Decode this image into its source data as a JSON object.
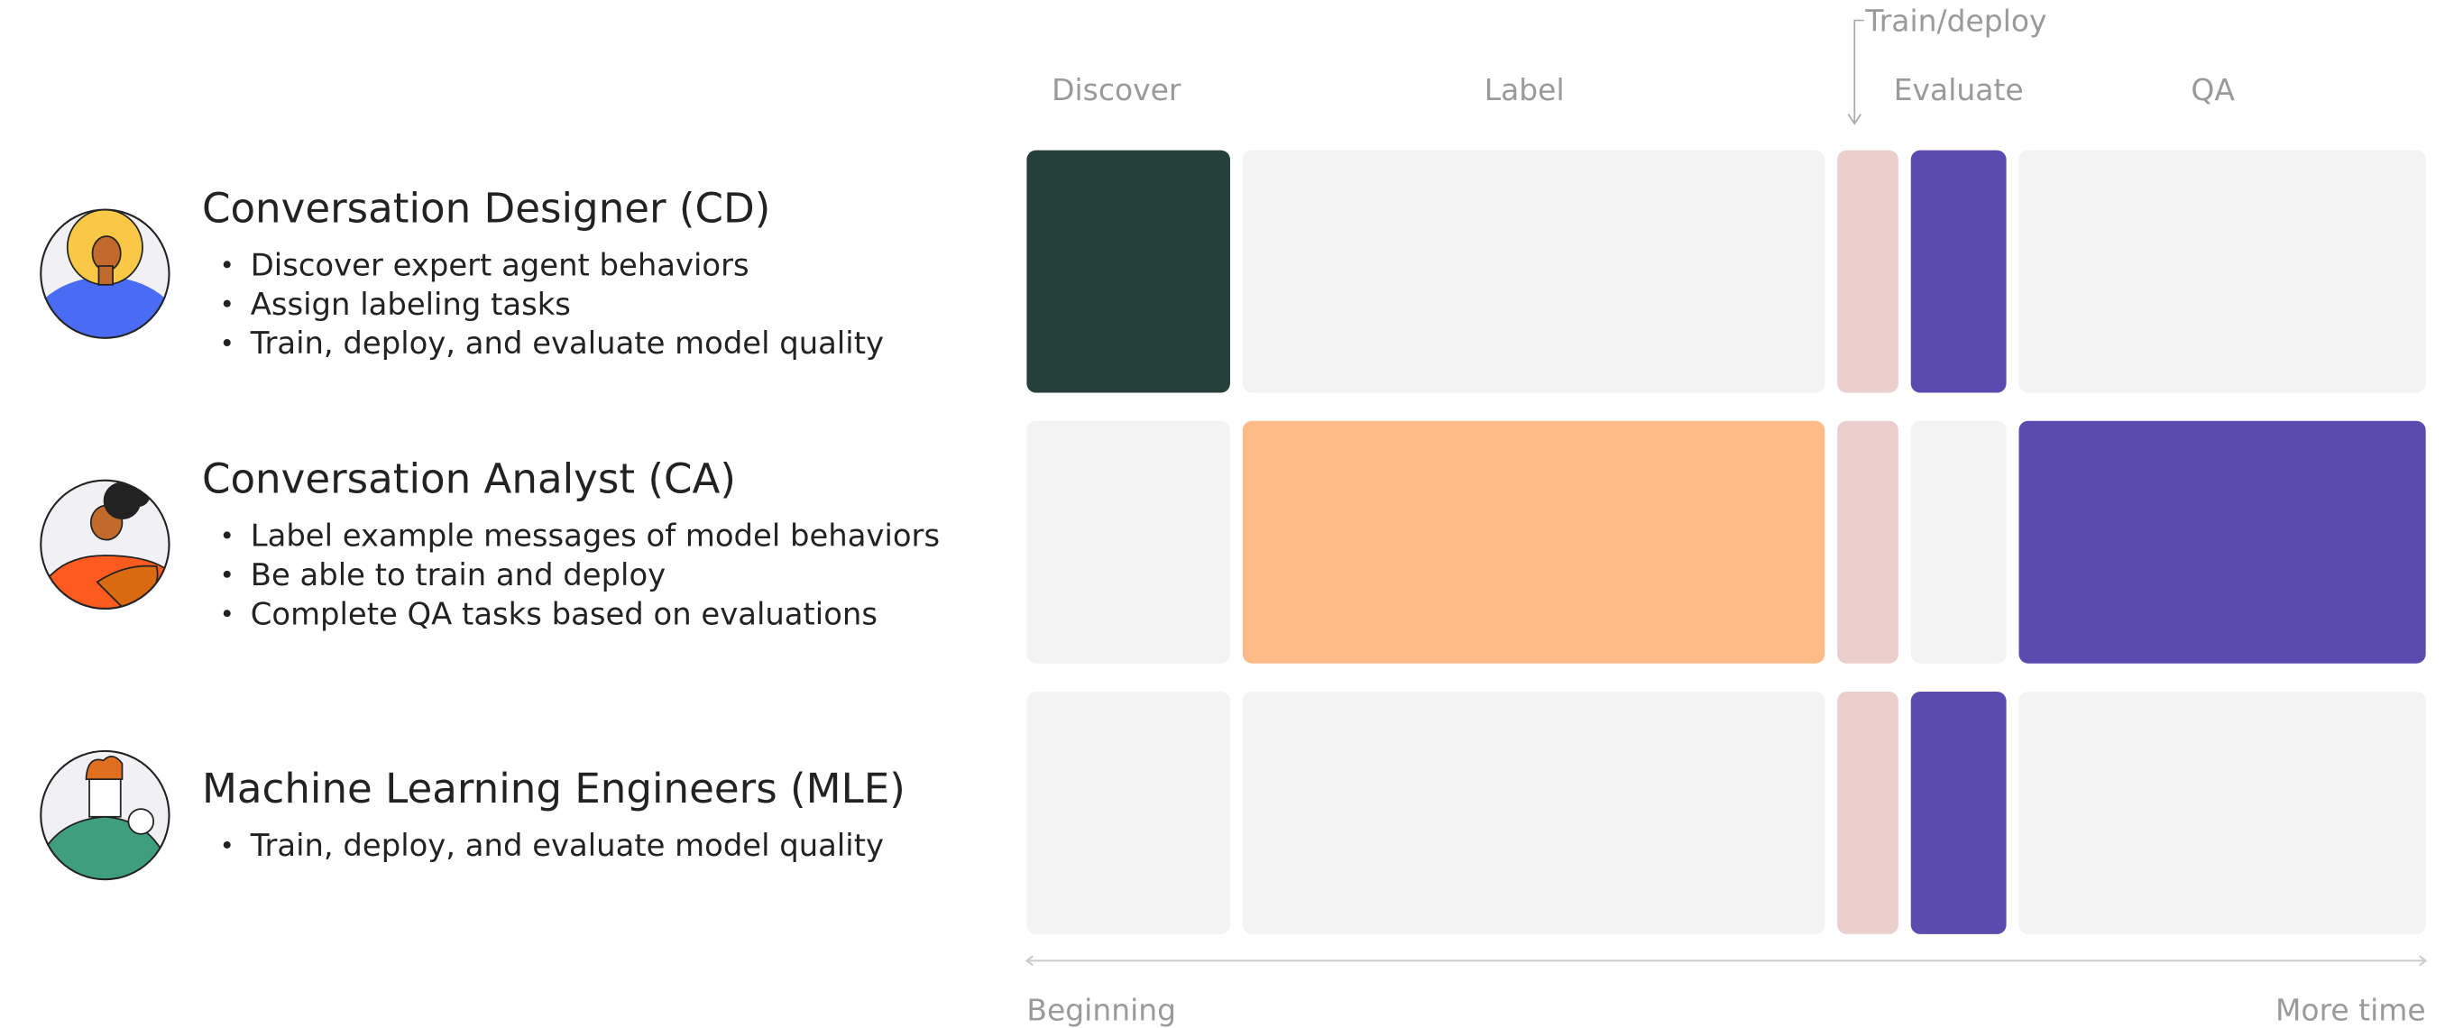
{
  "phases": [
    "Discover",
    "Label",
    "Train/deploy",
    "Evaluate",
    "QA"
  ],
  "personas": [
    {
      "title": "Conversation Designer (CD)",
      "bullets": [
        "Discover expert agent behaviors",
        "Assign labeling tasks",
        "Train, deploy, and evaluate model quality"
      ],
      "cells": [
        "#253f3a",
        "#f3f3f3",
        "#ebcfcd",
        "#5b4baf",
        "#f3f3f3"
      ]
    },
    {
      "title": "Conversation Analyst (CA)",
      "bullets": [
        "Label example messages of model behaviors",
        "Be able to train and deploy",
        "Complete QA tasks based on evaluations"
      ],
      "cells": [
        "#f3f3f3",
        "#ffbb87",
        "#ebcfcd",
        "#f3f3f3",
        "#5b4baf"
      ]
    },
    {
      "title": "Machine Learning Engineers (MLE)",
      "bullets": [
        "Train, deploy, and evaluate model quality"
      ],
      "cells": [
        "#f3f3f3",
        "#f3f3f3",
        "#ebcfcd",
        "#5b4baf",
        "#f3f3f3"
      ]
    }
  ],
  "timeline": {
    "start": "Beginning",
    "end": "More time"
  }
}
